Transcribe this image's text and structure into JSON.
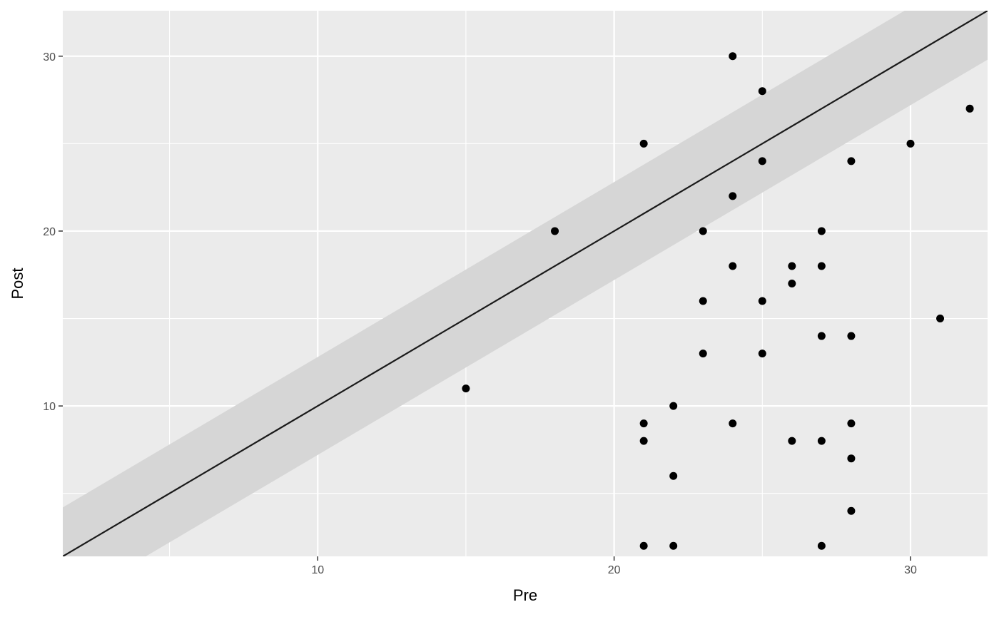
{
  "chart_data": {
    "type": "scatter",
    "title": "",
    "xlabel": "Pre",
    "ylabel": "Post",
    "xlim": [
      1.4,
      32.6
    ],
    "ylim": [
      1.4,
      32.6
    ],
    "x_ticks": [
      10,
      20,
      30
    ],
    "x_tick_labels": [
      "10",
      "20",
      "30"
    ],
    "y_ticks": [
      10,
      20,
      30
    ],
    "y_tick_labels": [
      "10",
      "20",
      "30"
    ],
    "x_minor_ticks": [
      5,
      15,
      25
    ],
    "y_minor_ticks": [
      5,
      15,
      25
    ],
    "grid": true,
    "legend": "none",
    "reference_line": {
      "intercept": 0,
      "slope": 1
    },
    "band": {
      "half_width": 2.8
    },
    "points": [
      {
        "x": 15,
        "y": 11
      },
      {
        "x": 18,
        "y": 20
      },
      {
        "x": 21,
        "y": 25
      },
      {
        "x": 21,
        "y": 9
      },
      {
        "x": 21,
        "y": 8
      },
      {
        "x": 21,
        "y": 2
      },
      {
        "x": 22,
        "y": 10
      },
      {
        "x": 22,
        "y": 6
      },
      {
        "x": 22,
        "y": 2
      },
      {
        "x": 23,
        "y": 20
      },
      {
        "x": 23,
        "y": 16
      },
      {
        "x": 23,
        "y": 13
      },
      {
        "x": 24,
        "y": 30
      },
      {
        "x": 24,
        "y": 22
      },
      {
        "x": 24,
        "y": 18
      },
      {
        "x": 24,
        "y": 9
      },
      {
        "x": 25,
        "y": 28
      },
      {
        "x": 25,
        "y": 24
      },
      {
        "x": 25,
        "y": 16
      },
      {
        "x": 25,
        "y": 13
      },
      {
        "x": 26,
        "y": 18
      },
      {
        "x": 26,
        "y": 17
      },
      {
        "x": 26,
        "y": 8
      },
      {
        "x": 27,
        "y": 20
      },
      {
        "x": 27,
        "y": 18
      },
      {
        "x": 27,
        "y": 14
      },
      {
        "x": 27,
        "y": 8
      },
      {
        "x": 27,
        "y": 2
      },
      {
        "x": 28,
        "y": 24
      },
      {
        "x": 28,
        "y": 14
      },
      {
        "x": 28,
        "y": 9
      },
      {
        "x": 28,
        "y": 7
      },
      {
        "x": 28,
        "y": 4
      },
      {
        "x": 30,
        "y": 25
      },
      {
        "x": 31,
        "y": 15
      },
      {
        "x": 32,
        "y": 27
      }
    ],
    "colors": {
      "panel": "#ebebeb",
      "grid": "#ffffff",
      "band": "#d6d6d6",
      "line": "#1a1a1a",
      "point": "#000000"
    }
  }
}
